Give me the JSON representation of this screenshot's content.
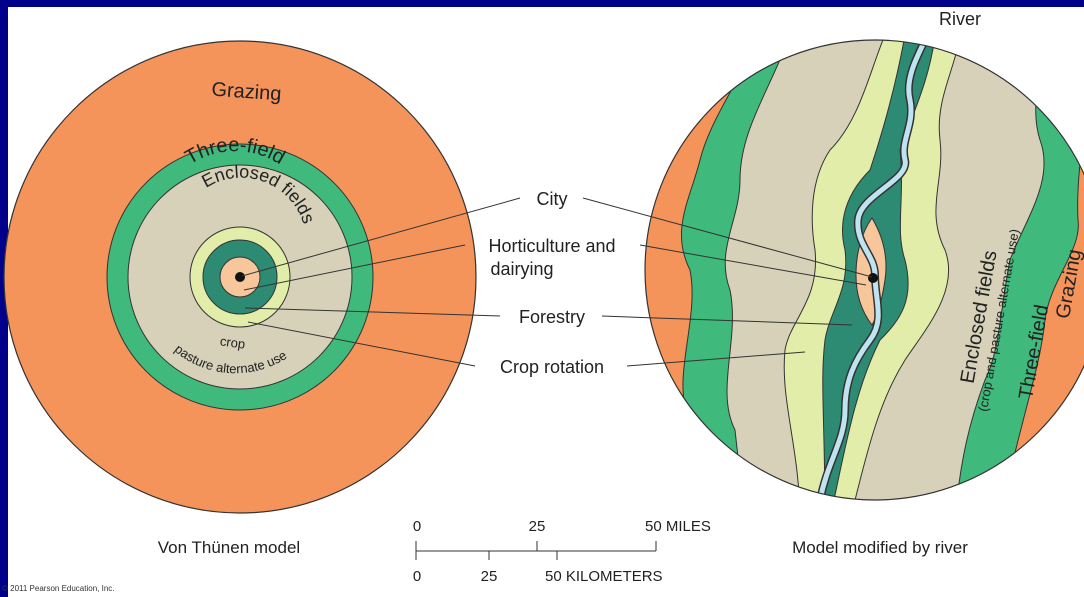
{
  "colors": {
    "frame": "#00008b",
    "grazing": "#f4935a",
    "three_field": "#3fb97c",
    "enclosed": "#d6d1b8",
    "crop_rotation": "#e2eda9",
    "forestry": "#2d8a73",
    "horticulture": "#f7c69b",
    "river": "#bfe3f0"
  },
  "von_thunen": {
    "grazing": "Grazing",
    "three_field": "Three-field",
    "enclosed": "Enclosed fields",
    "crop": "crop",
    "pasture": "pasture alternate use",
    "caption": "Von Thünen model"
  },
  "legend": {
    "city": "City",
    "horticulture_1": "Horticulture and",
    "horticulture_2": "dairying",
    "forestry": "Forestry",
    "crop_rotation": "Crop rotation"
  },
  "river_model": {
    "river": "River",
    "enclosed": "Enclosed fields",
    "enclosed_sub": "(crop and pasture alternate use)",
    "three_field": "Three-field",
    "grazing": "Grazing",
    "caption": "Model modified by river"
  },
  "scale": {
    "miles": [
      "0",
      "25",
      "50 MILES"
    ],
    "km": [
      "0",
      "25",
      "50 KILOMETERS"
    ]
  },
  "copyright": "© 2011 Pearson Education, Inc."
}
